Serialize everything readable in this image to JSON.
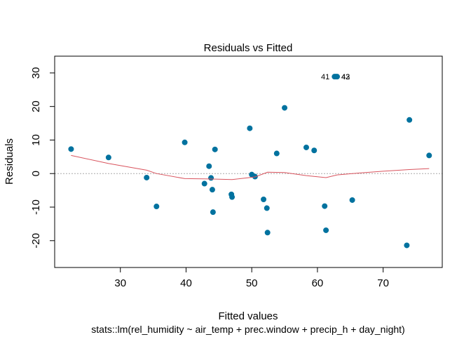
{
  "chart_data": {
    "type": "scatter",
    "title": "Residuals vs Fitted",
    "xlabel": "Fitted values",
    "ylabel": "Residuals",
    "subtitle": "stats::lm(rel_humidity ~ air_temp + prec.window + precip_h + day_night)",
    "xlim": [
      20,
      79
    ],
    "ylim": [
      -28,
      35
    ],
    "xticks": [
      30,
      40,
      50,
      60,
      70
    ],
    "yticks": [
      -20,
      -10,
      0,
      10,
      20,
      30
    ],
    "point_color": "#00729f",
    "smooth_color": "#d9545e",
    "zero_line_color": "#aaaaaa",
    "frame_color": "#000000",
    "points": [
      {
        "x": 22.5,
        "y": 7.3
      },
      {
        "x": 28.2,
        "y": 4.8
      },
      {
        "x": 34.0,
        "y": -1.2
      },
      {
        "x": 35.5,
        "y": -9.8
      },
      {
        "x": 39.8,
        "y": 9.3
      },
      {
        "x": 42.8,
        "y": -3.0
      },
      {
        "x": 43.5,
        "y": 2.2
      },
      {
        "x": 43.8,
        "y": -1.3
      },
      {
        "x": 44.0,
        "y": -4.8
      },
      {
        "x": 44.1,
        "y": -11.5
      },
      {
        "x": 44.4,
        "y": 7.2
      },
      {
        "x": 46.9,
        "y": -6.2
      },
      {
        "x": 47.0,
        "y": -7.0
      },
      {
        "x": 49.7,
        "y": 13.5
      },
      {
        "x": 50.0,
        "y": -0.3
      },
      {
        "x": 50.5,
        "y": -0.9
      },
      {
        "x": 51.8,
        "y": -7.7
      },
      {
        "x": 52.3,
        "y": -10.3
      },
      {
        "x": 52.4,
        "y": -17.6
      },
      {
        "x": 53.8,
        "y": 6.0
      },
      {
        "x": 55.0,
        "y": 19.6
      },
      {
        "x": 58.3,
        "y": 7.8
      },
      {
        "x": 59.5,
        "y": 6.9
      },
      {
        "x": 61.1,
        "y": -9.7
      },
      {
        "x": 61.3,
        "y": -16.9
      },
      {
        "x": 62.6,
        "y": 28.9
      },
      {
        "x": 62.8,
        "y": 28.9
      },
      {
        "x": 63.0,
        "y": 28.9
      },
      {
        "x": 65.3,
        "y": -7.9
      },
      {
        "x": 73.6,
        "y": -21.4
      },
      {
        "x": 74.0,
        "y": 16.0
      },
      {
        "x": 77.0,
        "y": 5.4
      }
    ],
    "labels": [
      "41",
      "43",
      "42"
    ],
    "smooth_line": [
      {
        "x": 22.5,
        "y": 5.4
      },
      {
        "x": 28.2,
        "y": 3.0
      },
      {
        "x": 34.0,
        "y": 1.0
      },
      {
        "x": 35.5,
        "y": 0.0
      },
      {
        "x": 39.8,
        "y": -1.5
      },
      {
        "x": 43.5,
        "y": -1.6
      },
      {
        "x": 47.0,
        "y": -1.8
      },
      {
        "x": 50.5,
        "y": -1.0
      },
      {
        "x": 52.4,
        "y": 0.4
      },
      {
        "x": 55.0,
        "y": 0.3
      },
      {
        "x": 58.3,
        "y": -0.6
      },
      {
        "x": 61.3,
        "y": -1.2
      },
      {
        "x": 63.0,
        "y": -0.4
      },
      {
        "x": 65.3,
        "y": 0.0
      },
      {
        "x": 70.0,
        "y": 0.7
      },
      {
        "x": 74.0,
        "y": 1.2
      },
      {
        "x": 77.0,
        "y": 1.5
      }
    ]
  }
}
